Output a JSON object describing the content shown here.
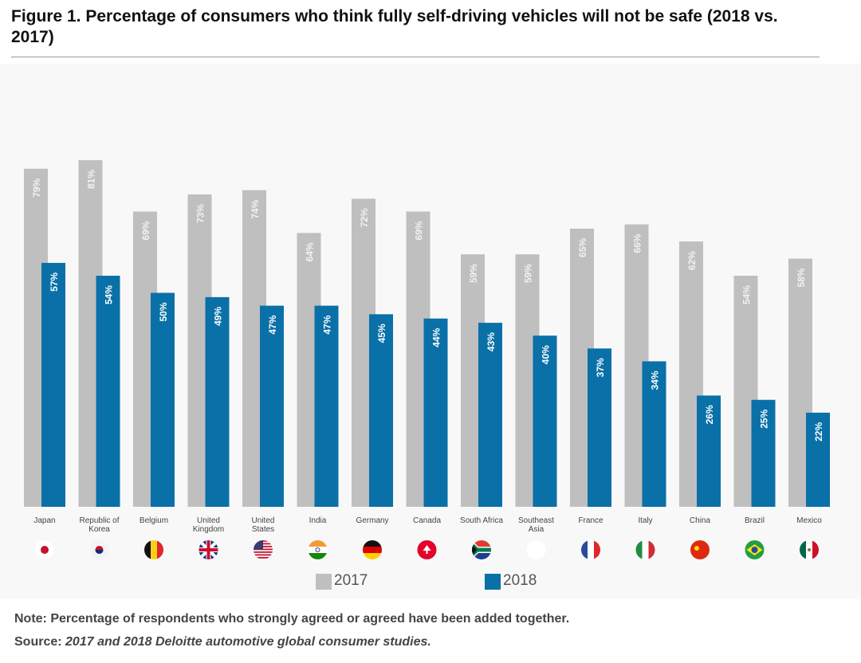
{
  "chart_data": {
    "type": "bar",
    "title": "Figure 1. Percentage of consumers who think fully self-driving vehicles will not be safe (2018 vs. 2017)",
    "categories": [
      "Japan",
      "Republic of Korea",
      "Belgium",
      "United Kingdom",
      "United States",
      "India",
      "Germany",
      "Canada",
      "South Africa",
      "Southeast Asia",
      "France",
      "Italy",
      "China",
      "Brazil",
      "Mexico"
    ],
    "category_lines": [
      [
        "Japan"
      ],
      [
        "Republic of",
        "Korea"
      ],
      [
        "Belgium"
      ],
      [
        "United",
        "Kingdom"
      ],
      [
        "United",
        "States"
      ],
      [
        "India"
      ],
      [
        "Germany"
      ],
      [
        "Canada"
      ],
      [
        "South Africa"
      ],
      [
        "Southeast",
        "Asia"
      ],
      [
        "France"
      ],
      [
        "Italy"
      ],
      [
        "China"
      ],
      [
        "Brazil"
      ],
      [
        "Mexico"
      ]
    ],
    "flag_icons": [
      "japan-flag",
      "south-korea-flag",
      "belgium-flag",
      "uk-flag",
      "us-flag",
      "india-flag",
      "germany-flag",
      "canada-flag",
      "south-africa-flag",
      "blank",
      "france-flag",
      "italy-flag",
      "china-flag",
      "brazil-flag",
      "mexico-flag"
    ],
    "series": [
      {
        "name": "2017",
        "color": "#bfbfbf",
        "values": [
          79,
          81,
          69,
          73,
          74,
          64,
          72,
          69,
          59,
          59,
          65,
          66,
          62,
          54,
          58
        ]
      },
      {
        "name": "2018",
        "color": "#0a70a8",
        "values": [
          57,
          54,
          50,
          49,
          47,
          47,
          45,
          44,
          43,
          40,
          37,
          34,
          26,
          25,
          22
        ]
      }
    ],
    "value_suffix": "%",
    "ylim": [
      0,
      100
    ],
    "grid": false,
    "legend_position": "bottom"
  },
  "footer": {
    "note": "Note: Percentage of respondents who strongly agreed or agreed have been added together.",
    "source_label": "Source:",
    "source_text": "2017 and 2018 Deloitte automotive global consumer studies."
  }
}
